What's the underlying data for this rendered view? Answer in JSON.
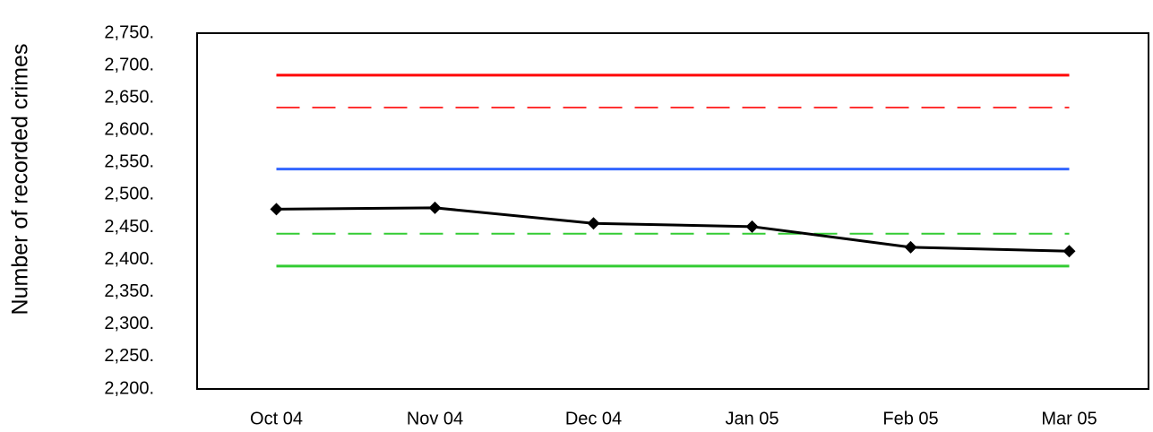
{
  "chart_data": {
    "type": "line",
    "y_label": "Number of recorded crimes",
    "categories": [
      "Oct 04",
      "Nov 04",
      "Dec 04",
      "Jan 05",
      "Feb 05",
      "Mar 05"
    ],
    "series": [
      {
        "color": "#ff0000",
        "dash": false,
        "values": [
          2685,
          2685,
          2685,
          2685,
          2685,
          2685
        ]
      },
      {
        "color": "#ff3333",
        "dash": true,
        "values": [
          2635,
          2635,
          2635,
          2635,
          2635,
          2635
        ]
      },
      {
        "color": "#3366ff",
        "dash": false,
        "values": [
          2540,
          2540,
          2540,
          2540,
          2540,
          2540
        ]
      },
      {
        "color": "#33cc33",
        "dash": true,
        "values": [
          2440,
          2440,
          2440,
          2440,
          2440,
          2440
        ]
      },
      {
        "color": "#33cc33",
        "dash": false,
        "values": [
          2390,
          2390,
          2390,
          2390,
          2390,
          2390
        ]
      },
      {
        "color": "#000000",
        "dash": false,
        "marker": "diamond",
        "values": [
          2478,
          2480,
          2456,
          2451,
          2419,
          2413
        ]
      }
    ],
    "ylim": [
      2200,
      2750
    ],
    "yticks": [
      {
        "value": 2200,
        "label": "2,200."
      },
      {
        "value": 2250,
        "label": "2,250."
      },
      {
        "value": 2300,
        "label": "2,300."
      },
      {
        "value": 2350,
        "label": "2,350."
      },
      {
        "value": 2400,
        "label": "2,400."
      },
      {
        "value": 2450,
        "label": "2,450."
      },
      {
        "value": 2500,
        "label": "2,500."
      },
      {
        "value": 2550,
        "label": "2,550."
      },
      {
        "value": 2600,
        "label": "2,600."
      },
      {
        "value": 2650,
        "label": "2,650."
      },
      {
        "value": 2700,
        "label": "2,700."
      },
      {
        "value": 2750,
        "label": "2,750."
      }
    ],
    "grid": false
  }
}
